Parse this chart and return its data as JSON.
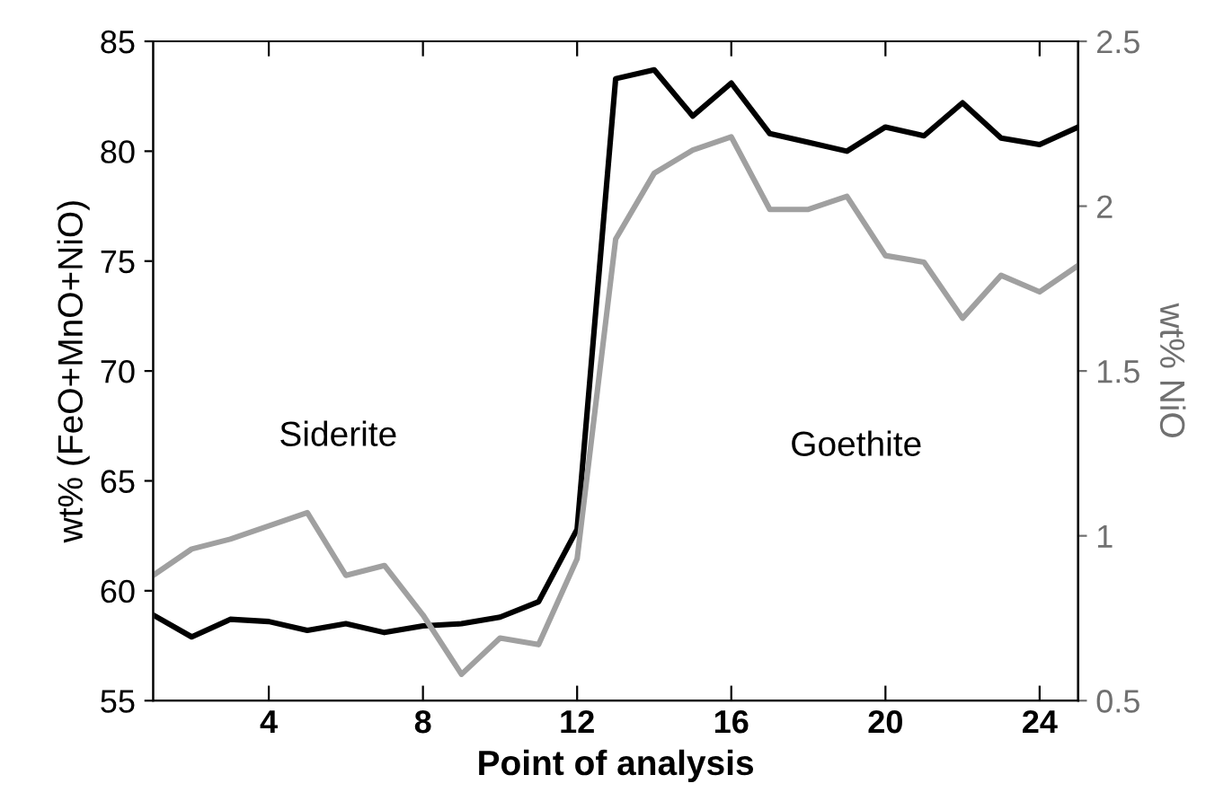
{
  "chart_data": {
    "type": "line",
    "x": [
      1,
      2,
      3,
      4,
      5,
      6,
      7,
      8,
      9,
      10,
      11,
      12,
      13,
      14,
      15,
      16,
      17,
      18,
      19,
      20,
      21,
      22,
      23,
      24,
      25
    ],
    "xlabel": "Point of analysis",
    "ylabel": "wt% (FeO+MnO+NiO)",
    "y2label": "wt% NiO",
    "xlim": [
      1,
      25
    ],
    "xticks": [
      4,
      8,
      12,
      16,
      20,
      24
    ],
    "ylim": [
      55,
      85
    ],
    "yticks": [
      55,
      60,
      65,
      70,
      75,
      80,
      85
    ],
    "y2lim": [
      0.5,
      2.5
    ],
    "y2ticks": [
      0.5,
      1,
      1.5,
      2,
      2.5
    ],
    "series": [
      {
        "color": "#000000",
        "values": [
          58.9,
          57.9,
          58.7,
          58.6,
          58.2,
          58.5,
          58.1,
          58.4,
          58.5,
          58.8,
          59.5,
          62.8,
          83.3,
          83.7,
          81.6,
          83.1,
          80.8,
          80.4,
          80.0,
          81.1,
          80.7,
          82.2,
          80.6,
          80.3,
          81.1
        ]
      },
      {
        "color": "#a0a0a0",
        "axis": "y2",
        "values": [
          0.88,
          0.96,
          0.99,
          1.03,
          1.07,
          0.88,
          0.91,
          0.76,
          0.58,
          0.69,
          0.67,
          0.93,
          1.9,
          2.1,
          2.17,
          2.21,
          1.99,
          1.99,
          2.03,
          1.85,
          1.83,
          1.66,
          1.79,
          1.74,
          1.82
        ]
      }
    ],
    "annotations": [
      "Siderite",
      "Goethite"
    ],
    "grid": false,
    "legend": false
  }
}
